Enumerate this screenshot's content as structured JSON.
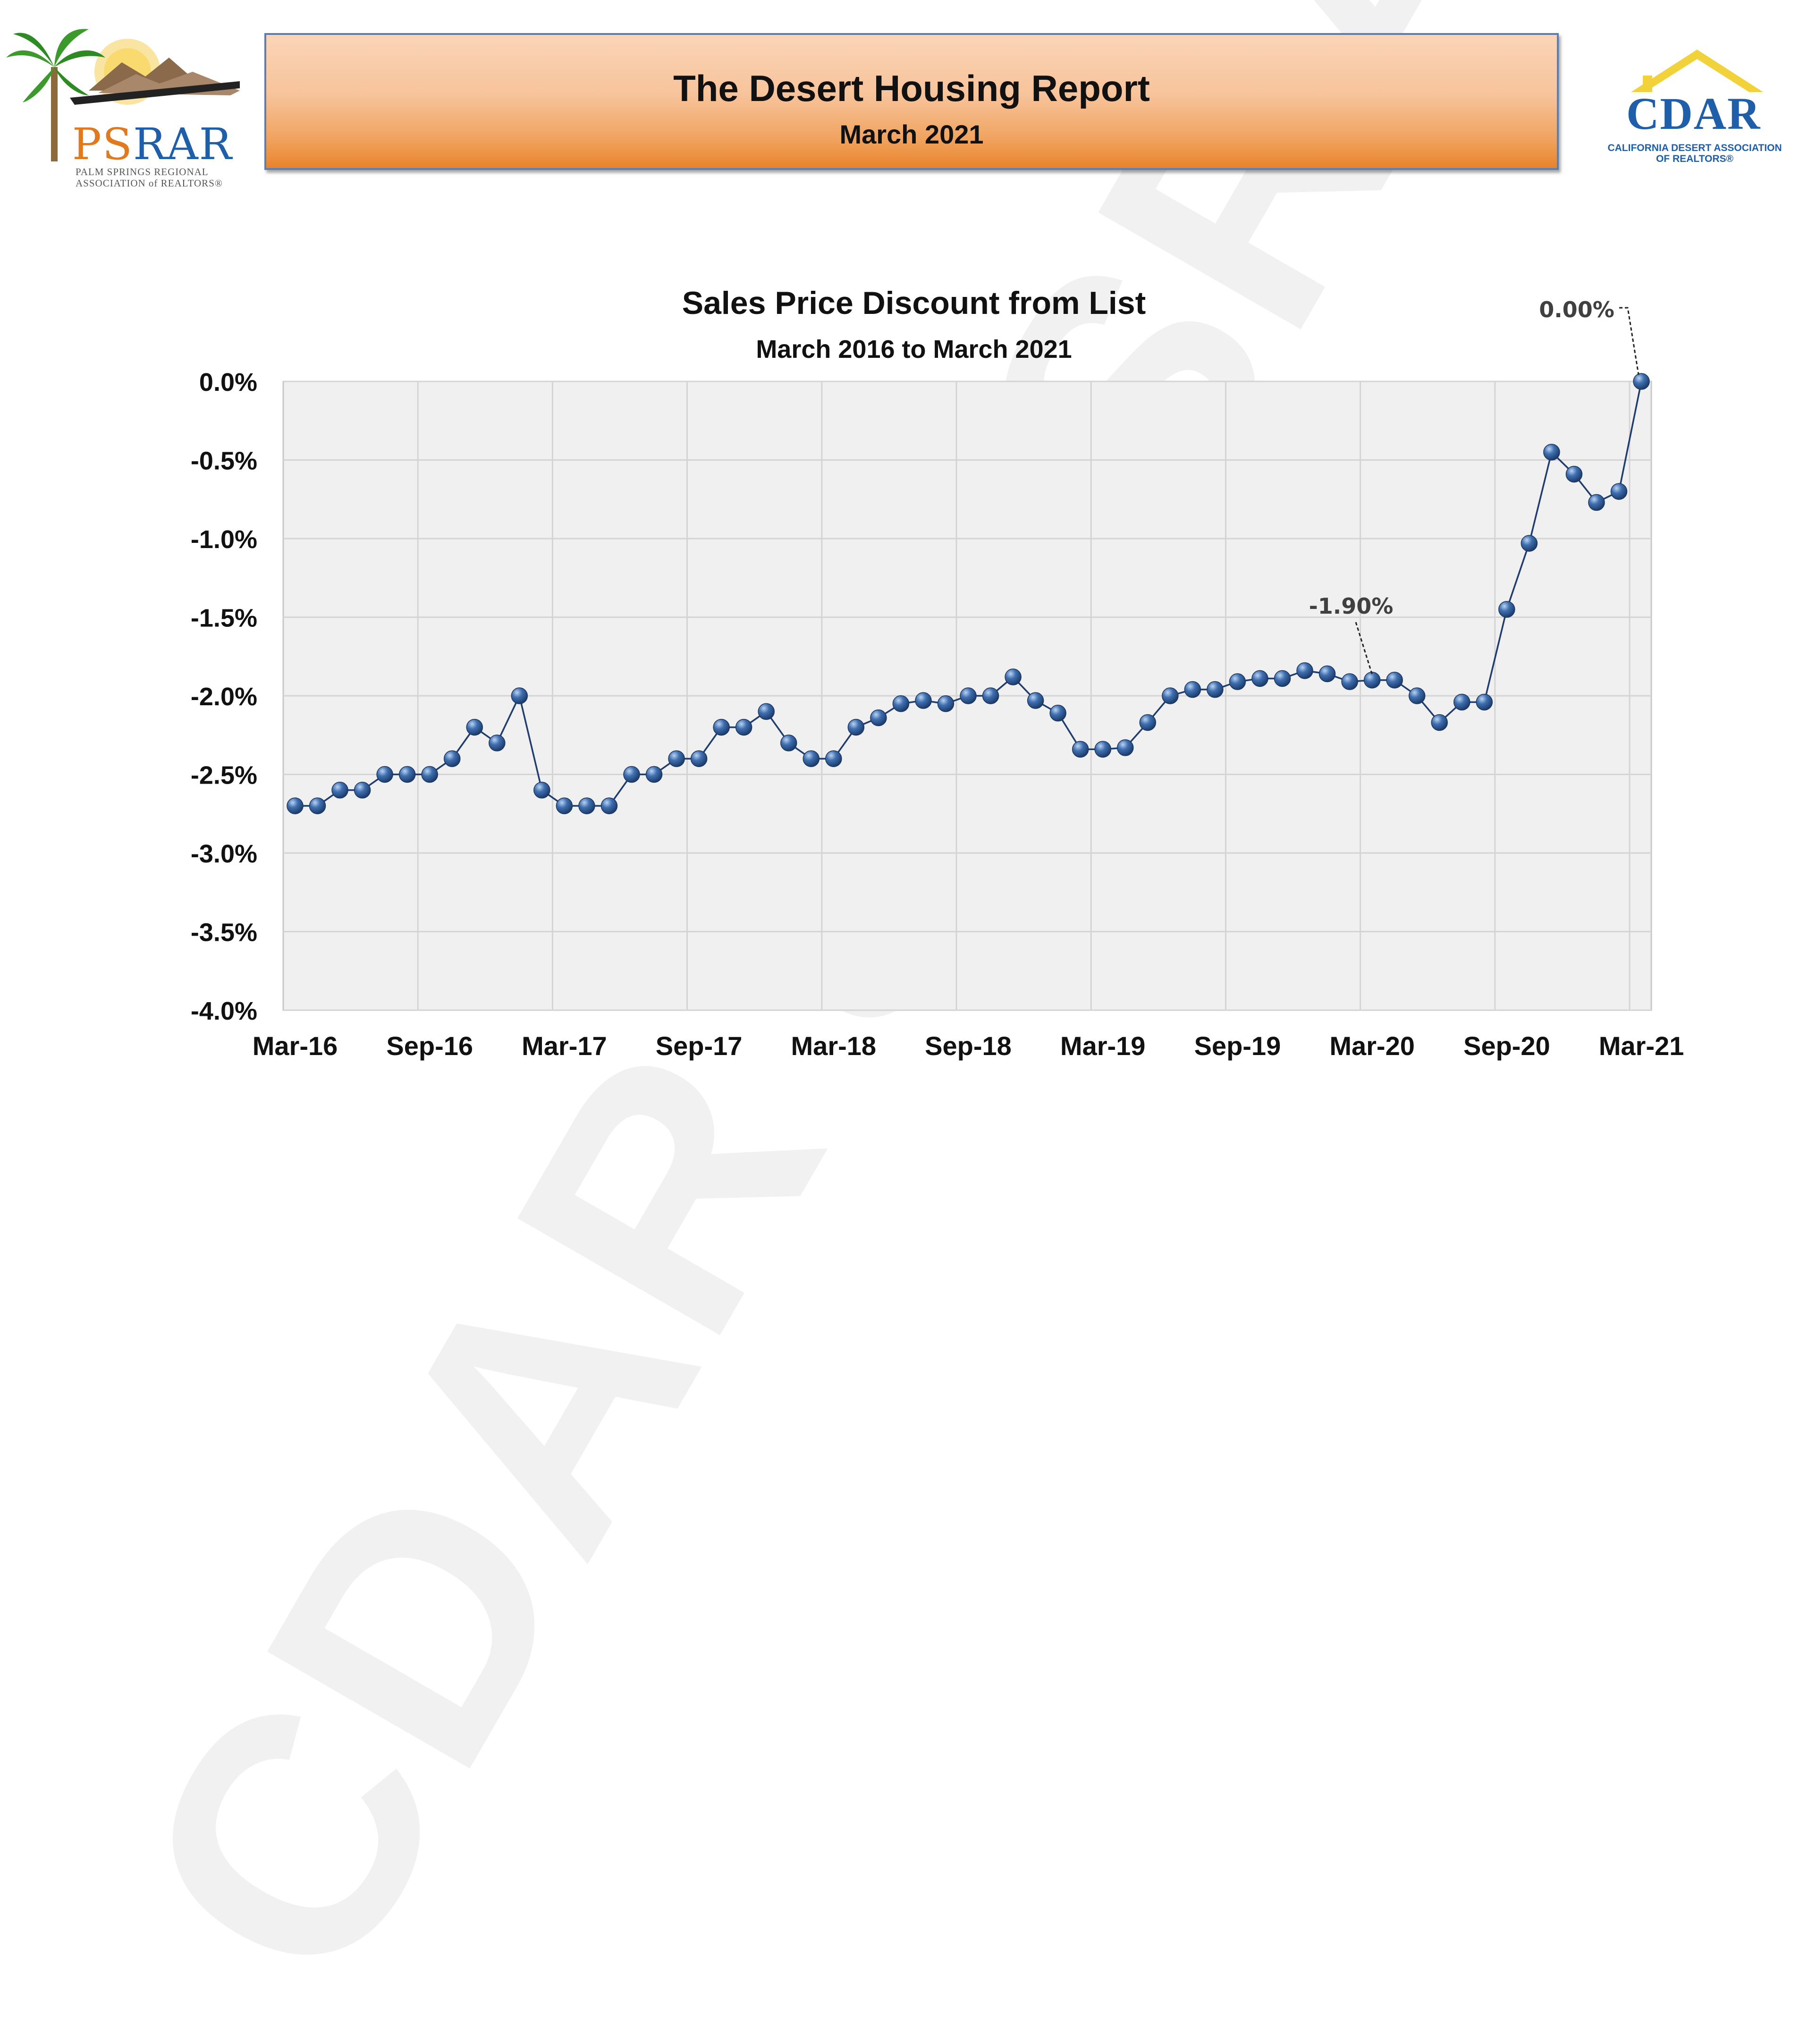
{
  "header": {
    "title": "The Desert Housing Report",
    "subtitle": "March 2021"
  },
  "logos": {
    "left": {
      "name": "PSRAR",
      "name_part1": "PS",
      "name_part2": "RAR",
      "line1": "PALM SPRINGS REGIONAL",
      "line2": "ASSOCIATION of REALTORS®"
    },
    "right": {
      "name": "CDAR",
      "line1": "CALIFORNIA DESERT ASSOCIATION",
      "line2": "OF REALTORS®"
    }
  },
  "watermark": "CDAR & PSRAR",
  "colors": {
    "marker": "#3f6fb0",
    "line": "#1f3c6e",
    "plot_bg": "#f0f0f0",
    "grid": "#d4d4d4"
  },
  "chart_data": {
    "type": "line",
    "title": "Sales Price Discount from List",
    "subtitle": "March 2016 to March 2021",
    "xlabel": "",
    "ylabel": "",
    "ylim": [
      -4.0,
      0.0
    ],
    "y_ticks": [
      "0.0%",
      "-0.5%",
      "-1.0%",
      "-1.5%",
      "-2.0%",
      "-2.5%",
      "-3.0%",
      "-3.5%",
      "-4.0%"
    ],
    "x_ticks": [
      "Mar-16",
      "Sep-16",
      "Mar-17",
      "Sep-17",
      "Mar-18",
      "Sep-18",
      "Mar-19",
      "Sep-19",
      "Mar-20",
      "Sep-20",
      "Mar-21"
    ],
    "x_range": [
      "Mar-16",
      "Mar-21"
    ],
    "grid": true,
    "series": [
      {
        "values": [
          -2.7,
          -2.7,
          -2.6,
          -2.6,
          -2.5,
          -2.5,
          -2.5,
          -2.4,
          -2.2,
          -2.3,
          -2.0,
          -2.6,
          -2.7,
          -2.7,
          -2.7,
          -2.5,
          -2.5,
          -2.4,
          -2.4,
          -2.2,
          -2.2,
          -2.1,
          -2.3,
          -2.4,
          -2.4,
          -2.2,
          -2.14,
          -2.05,
          -2.03,
          -2.05,
          -2.0,
          -2.0,
          -1.88,
          -2.03,
          -2.11,
          -2.34,
          -2.34,
          -2.33,
          -2.17,
          -2.0,
          -1.96,
          -1.96,
          -1.91,
          -1.89,
          -1.89,
          -1.84,
          -1.86,
          -1.91,
          -1.9,
          -1.9,
          -2.0,
          -2.17,
          -2.04,
          -2.04,
          -1.45,
          -1.03,
          -0.45,
          -0.59,
          -0.77,
          -0.7,
          0.0
        ]
      }
    ],
    "annotations": [
      {
        "label": "-1.90%",
        "point_index": 48
      },
      {
        "label": "0.00%",
        "point_index": 60
      }
    ]
  }
}
